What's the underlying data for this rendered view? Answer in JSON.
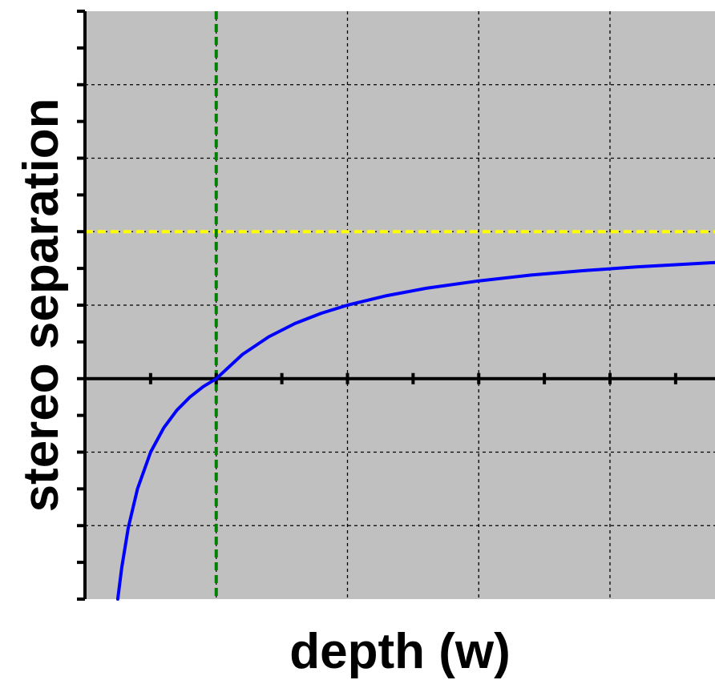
{
  "chart_data": {
    "type": "line",
    "title": "",
    "xlabel": "depth (w)",
    "ylabel": "stereo separation",
    "xlim": [
      0,
      4.8
    ],
    "ylim": [
      -3,
      5
    ],
    "grid": true,
    "x_grid_step": 1,
    "y_grid_step": 1,
    "x_minor_ticks_on_zero_line": 0.5,
    "y_minor_tick_step": 0.5,
    "background_color": "#c0c0c0",
    "series": [
      {
        "color": "#0000ff",
        "x": [
          0.25,
          0.28,
          0.33,
          0.4,
          0.5,
          0.6,
          0.7,
          0.8,
          0.9,
          1.0,
          1.2,
          1.4,
          1.6,
          1.8,
          2.0,
          2.3,
          2.6,
          3.0,
          3.4,
          3.8,
          4.2,
          4.8
        ],
        "y": [
          -3.0,
          -2.57,
          -2.03,
          -1.5,
          -1.0,
          -0.67,
          -0.43,
          -0.25,
          -0.11,
          0.0,
          0.33,
          0.57,
          0.75,
          0.89,
          1.0,
          1.13,
          1.23,
          1.33,
          1.41,
          1.47,
          1.52,
          1.58
        ]
      }
    ],
    "reference_lines": [
      {
        "orientation": "horizontal",
        "value": 2,
        "color": "#ffff00",
        "style": "dashed"
      },
      {
        "orientation": "vertical",
        "value": 1,
        "color": "#008000",
        "style": "dashed"
      }
    ]
  }
}
